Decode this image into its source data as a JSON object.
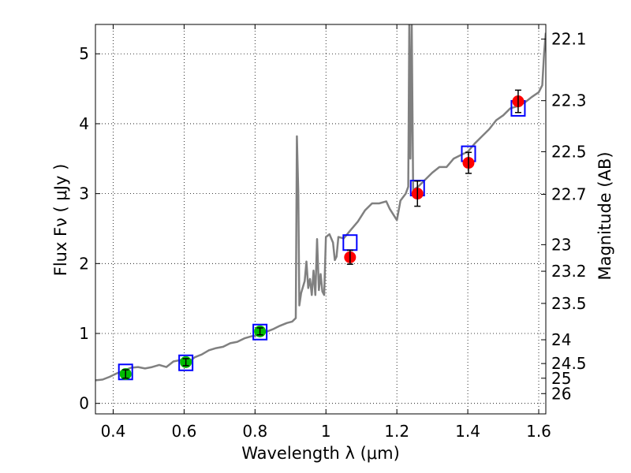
{
  "chart_data": {
    "type": "scatter",
    "xlabel": "Wavelength  λ (μm)",
    "ylabel": "Flux  Fν  ( μJy )",
    "ylabel_right": "Magnitude (AB)",
    "xlim": [
      0.35,
      1.62
    ],
    "ylim": [
      -0.15,
      5.42
    ],
    "grid": true,
    "x_ticks": [
      0.4,
      0.6,
      0.8,
      1.0,
      1.2,
      1.4,
      1.6
    ],
    "x_tick_labels": [
      "0.4",
      "0.6",
      "0.8",
      "1",
      "1.2",
      "1.4",
      "1.6"
    ],
    "y_ticks": [
      0,
      1,
      2,
      3,
      4,
      5
    ],
    "y_tick_labels": [
      "0",
      "1",
      "2",
      "3",
      "4",
      "5"
    ],
    "right_ticks": [
      {
        "label": "22.1",
        "flux": 5.21
      },
      {
        "label": "22.3",
        "flux": 4.33
      },
      {
        "label": "22.5",
        "flux": 3.6
      },
      {
        "label": "22.7",
        "flux": 2.99
      },
      {
        "label": "23",
        "flux": 2.27
      },
      {
        "label": "23.2",
        "flux": 1.89
      },
      {
        "label": "23.5",
        "flux": 1.43
      },
      {
        "label": "24",
        "flux": 0.91
      },
      {
        "label": "24.5",
        "flux": 0.57
      },
      {
        "label": "25",
        "flux": 0.36
      },
      {
        "label": "26",
        "flux": 0.14
      }
    ],
    "series": [
      {
        "name": "model_spectrum",
        "kind": "line",
        "color": "#808080",
        "points": [
          [
            0.35,
            0.33
          ],
          [
            0.37,
            0.34
          ],
          [
            0.39,
            0.38
          ],
          [
            0.41,
            0.43
          ],
          [
            0.43,
            0.47
          ],
          [
            0.45,
            0.51
          ],
          [
            0.47,
            0.52
          ],
          [
            0.49,
            0.5
          ],
          [
            0.51,
            0.52
          ],
          [
            0.53,
            0.55
          ],
          [
            0.55,
            0.52
          ],
          [
            0.57,
            0.6
          ],
          [
            0.59,
            0.62
          ],
          [
            0.61,
            0.58
          ],
          [
            0.63,
            0.66
          ],
          [
            0.65,
            0.7
          ],
          [
            0.67,
            0.76
          ],
          [
            0.69,
            0.79
          ],
          [
            0.71,
            0.81
          ],
          [
            0.73,
            0.86
          ],
          [
            0.75,
            0.88
          ],
          [
            0.77,
            0.93
          ],
          [
            0.79,
            0.96
          ],
          [
            0.81,
            0.98
          ],
          [
            0.83,
            1.02
          ],
          [
            0.85,
            1.06
          ],
          [
            0.87,
            1.11
          ],
          [
            0.89,
            1.15
          ],
          [
            0.905,
            1.17
          ],
          [
            0.915,
            1.22
          ],
          [
            0.918,
            3.82
          ],
          [
            0.922,
            3.0
          ],
          [
            0.925,
            1.4
          ],
          [
            0.93,
            1.58
          ],
          [
            0.94,
            1.75
          ],
          [
            0.945,
            2.03
          ],
          [
            0.95,
            1.65
          ],
          [
            0.955,
            1.78
          ],
          [
            0.96,
            1.55
          ],
          [
            0.965,
            1.9
          ],
          [
            0.97,
            1.55
          ],
          [
            0.975,
            2.35
          ],
          [
            0.98,
            1.62
          ],
          [
            0.985,
            1.85
          ],
          [
            0.99,
            1.6
          ],
          [
            0.995,
            1.55
          ],
          [
            1.0,
            2.38
          ],
          [
            1.01,
            2.42
          ],
          [
            1.02,
            2.3
          ],
          [
            1.025,
            2.05
          ],
          [
            1.03,
            2.1
          ],
          [
            1.035,
            2.38
          ],
          [
            1.05,
            2.36
          ],
          [
            1.07,
            2.48
          ],
          [
            1.09,
            2.6
          ],
          [
            1.11,
            2.76
          ],
          [
            1.13,
            2.86
          ],
          [
            1.15,
            2.86
          ],
          [
            1.17,
            2.89
          ],
          [
            1.18,
            2.78
          ],
          [
            1.19,
            2.7
          ],
          [
            1.2,
            2.62
          ],
          [
            1.21,
            2.9
          ],
          [
            1.225,
            3.0
          ],
          [
            1.232,
            3.1
          ],
          [
            1.235,
            5.42
          ],
          [
            1.238,
            3.5
          ],
          [
            1.242,
            5.42
          ],
          [
            1.246,
            3.05
          ],
          [
            1.26,
            3.1
          ],
          [
            1.28,
            3.2
          ],
          [
            1.3,
            3.3
          ],
          [
            1.32,
            3.38
          ],
          [
            1.34,
            3.38
          ],
          [
            1.36,
            3.5
          ],
          [
            1.38,
            3.55
          ],
          [
            1.4,
            3.6
          ],
          [
            1.42,
            3.72
          ],
          [
            1.44,
            3.82
          ],
          [
            1.46,
            3.92
          ],
          [
            1.48,
            4.05
          ],
          [
            1.5,
            4.12
          ],
          [
            1.52,
            4.22
          ],
          [
            1.54,
            4.25
          ],
          [
            1.56,
            4.3
          ],
          [
            1.58,
            4.38
          ],
          [
            1.6,
            4.45
          ],
          [
            1.61,
            4.55
          ],
          [
            1.615,
            5.0
          ],
          [
            1.62,
            5.3
          ]
        ]
      },
      {
        "name": "model_band_flux",
        "kind": "square",
        "color": "#0000ff",
        "points": [
          [
            0.435,
            0.45
          ],
          [
            0.605,
            0.58
          ],
          [
            0.814,
            1.02
          ],
          [
            1.068,
            2.3
          ],
          [
            1.258,
            3.08
          ],
          [
            1.402,
            3.57
          ],
          [
            1.542,
            4.22
          ]
        ]
      },
      {
        "name": "observed_optical",
        "kind": "circle",
        "color": "#00bb00",
        "points": [
          [
            0.435,
            0.42,
            0.06
          ],
          [
            0.605,
            0.59,
            0.05
          ],
          [
            0.814,
            1.03,
            0.05
          ]
        ]
      },
      {
        "name": "observed_nir",
        "kind": "circle",
        "color": "#ff0000",
        "points": [
          [
            1.068,
            2.09,
            0.1
          ],
          [
            1.258,
            3.0,
            0.18
          ],
          [
            1.402,
            3.44,
            0.15
          ],
          [
            1.542,
            4.32,
            0.16
          ]
        ]
      }
    ]
  }
}
